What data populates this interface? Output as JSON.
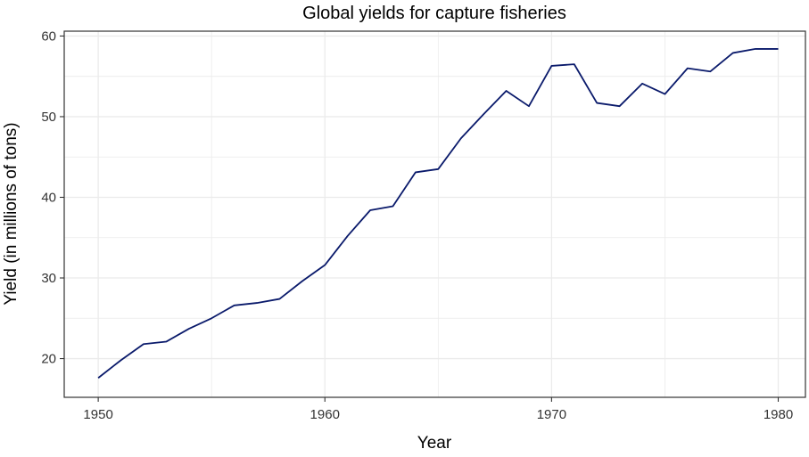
{
  "chart_data": {
    "type": "line",
    "title": "Global yields for capture fisheries",
    "xlabel": "Year",
    "ylabel": "Yield (in millions of tons)",
    "xlim": [
      1948.5,
      1981.2
    ],
    "ylim": [
      15.2,
      60.6
    ],
    "xticks": [
      1950,
      1960,
      1970,
      1980
    ],
    "yticks": [
      20,
      30,
      40,
      50,
      60
    ],
    "xminor": [
      1955,
      1965,
      1975
    ],
    "yminor": [
      25,
      35,
      45,
      55
    ],
    "grid": true,
    "line_color": "#0a1a6b",
    "grid_color": "#ebebeb",
    "series": [
      {
        "x": [
          1950,
          1951,
          1952,
          1953,
          1954,
          1955,
          1956,
          1957,
          1958,
          1959,
          1960,
          1961,
          1962,
          1963,
          1964,
          1965,
          1966,
          1967,
          1968,
          1969,
          1970,
          1971,
          1972,
          1973,
          1974,
          1975,
          1976,
          1977,
          1978,
          1979,
          1980
        ],
        "values": [
          17.6,
          19.8,
          21.8,
          22.1,
          23.7,
          25.0,
          26.6,
          26.9,
          27.4,
          29.6,
          31.6,
          35.2,
          38.4,
          38.9,
          43.1,
          43.5,
          47.3,
          50.3,
          53.2,
          51.3,
          56.3,
          56.5,
          51.7,
          51.3,
          54.1,
          52.8,
          56.0,
          55.6,
          57.9,
          58.4,
          58.4
        ]
      }
    ]
  }
}
